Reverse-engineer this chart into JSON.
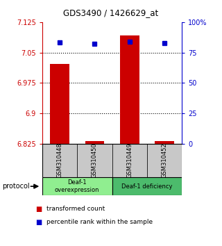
{
  "title": "GDS3490 / 1426629_at",
  "samples": [
    "GSM310448",
    "GSM310450",
    "GSM310449",
    "GSM310452"
  ],
  "red_values": [
    7.022,
    6.832,
    7.092,
    6.832
  ],
  "blue_values": [
    83.5,
    82.5,
    84.0,
    83.0
  ],
  "bar_bottom": 6.825,
  "ylim_left": [
    6.825,
    7.125
  ],
  "ylim_right": [
    0,
    100
  ],
  "yticks_left": [
    6.825,
    6.9,
    6.975,
    7.05,
    7.125
  ],
  "yticks_right": [
    0,
    25,
    50,
    75,
    100
  ],
  "ytick_labels_right": [
    "0",
    "25",
    "50",
    "75",
    "100%"
  ],
  "hlines": [
    7.05,
    6.975,
    6.9
  ],
  "groups": [
    {
      "label": "Deaf-1\noverexpression",
      "indices": [
        0,
        1
      ],
      "color": "#90EE90"
    },
    {
      "label": "Deaf-1 deficiency",
      "indices": [
        2,
        3
      ],
      "color": "#4CBB6C"
    }
  ],
  "red_color": "#CC0000",
  "blue_color": "#0000CC",
  "bar_width": 0.55,
  "legend_red": "transformed count",
  "legend_blue": "percentile rank within the sample",
  "protocol_label": "protocol",
  "tick_label_color_left": "#CC0000",
  "tick_label_color_right": "#0000CC",
  "sample_box_color": "#C8C8C8"
}
